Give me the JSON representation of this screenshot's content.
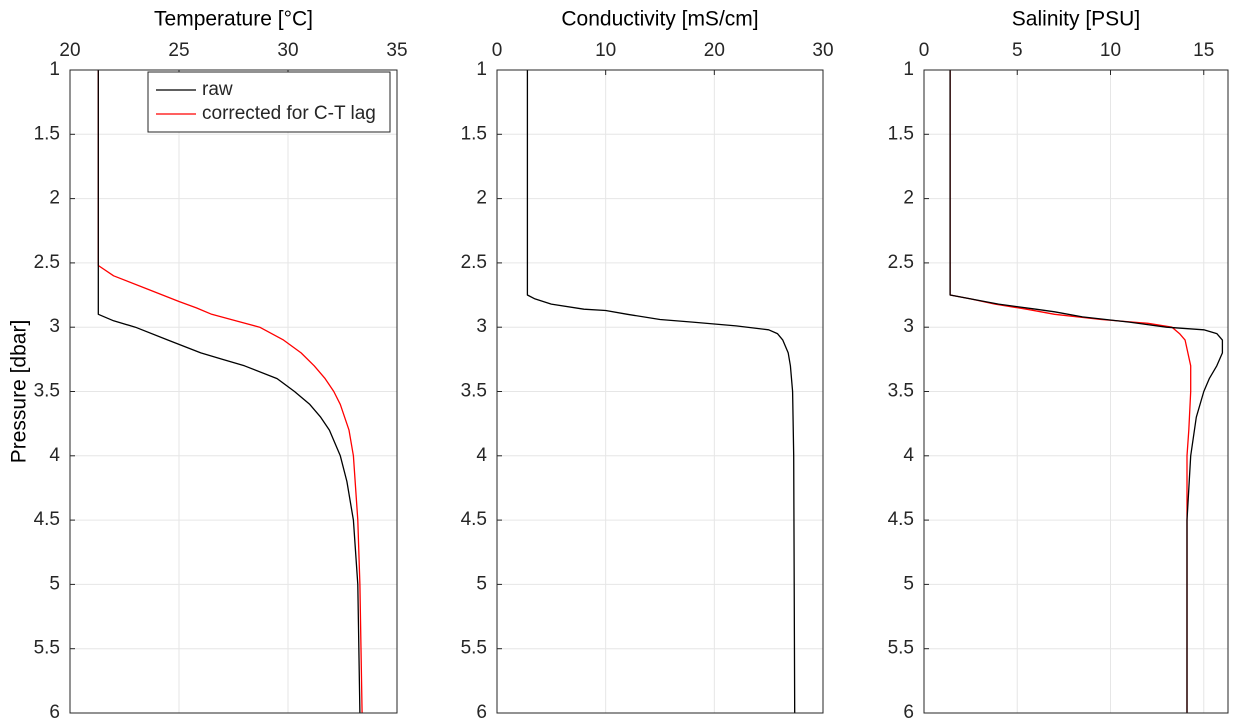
{
  "chart_data": [
    {
      "type": "line",
      "title": "Temperature [°C]",
      "y_label": "Pressure [dbar]",
      "y_reversed": true,
      "grid": true,
      "legend": "upper right",
      "xlim": [
        20,
        35
      ],
      "xticks": [
        20,
        25,
        30,
        35
      ],
      "ylim": [
        1,
        6
      ],
      "yticks": [
        1,
        1.5,
        2,
        2.5,
        3,
        3.5,
        4,
        4.5,
        5,
        5.5,
        6
      ],
      "series": [
        {
          "name": "raw",
          "color": "#000000",
          "x": [
            21.3,
            21.3,
            21.3,
            22,
            23,
            24.5,
            26,
            27,
            28,
            29.5,
            30.3,
            31,
            31.5,
            31.9,
            32.4,
            32.7,
            33,
            33.2,
            33.3
          ],
          "y": [
            1,
            2.5,
            2.9,
            2.95,
            3.0,
            3.1,
            3.2,
            3.25,
            3.3,
            3.4,
            3.5,
            3.6,
            3.7,
            3.8,
            4.0,
            4.2,
            4.5,
            5,
            6
          ]
        },
        {
          "name": "corrected for C-T lag",
          "color": "#ff0000",
          "x": [
            21.3,
            21.3,
            22,
            23.5,
            25,
            25.8,
            26.5,
            27.6,
            28.7,
            29.8,
            30.6,
            31.2,
            31.7,
            32.1,
            32.4,
            32.8,
            33,
            33.2,
            33.3,
            33.4
          ],
          "y": [
            1,
            2.52,
            2.6,
            2.7,
            2.8,
            2.85,
            2.9,
            2.95,
            3.0,
            3.1,
            3.2,
            3.3,
            3.4,
            3.5,
            3.6,
            3.8,
            4.0,
            4.5,
            5,
            6
          ]
        }
      ]
    },
    {
      "type": "line",
      "title": "Conductivity [mS/cm]",
      "y_reversed": true,
      "grid": true,
      "xlim": [
        0,
        30
      ],
      "xticks": [
        0,
        10,
        20,
        30
      ],
      "ylim": [
        1,
        6
      ],
      "yticks": [
        1,
        1.5,
        2,
        2.5,
        3,
        3.5,
        4,
        4.5,
        5,
        5.5,
        6
      ],
      "series": [
        {
          "color": "#000000",
          "x": [
            2.8,
            2.8,
            3.5,
            5,
            8,
            10,
            12,
            15,
            18,
            22,
            24,
            25,
            25.8,
            26.3,
            26.8,
            27,
            27.2,
            27.3,
            27.4
          ],
          "y": [
            1,
            2.75,
            2.78,
            2.82,
            2.86,
            2.87,
            2.9,
            2.94,
            2.96,
            2.99,
            3.01,
            3.02,
            3.05,
            3.1,
            3.2,
            3.3,
            3.5,
            4,
            6
          ]
        }
      ]
    },
    {
      "type": "line",
      "title": "Salinity [PSU]",
      "y_reversed": true,
      "grid": true,
      "xlim": [
        0,
        16.3
      ],
      "xticks": [
        0,
        5,
        10,
        15
      ],
      "ylim": [
        1,
        6
      ],
      "yticks": [
        1,
        1.5,
        2,
        2.5,
        3,
        3.5,
        4,
        4.5,
        5,
        5.5,
        6
      ],
      "series": [
        {
          "color": "#000000",
          "x": [
            1.4,
            1.4,
            2.5,
            4,
            6,
            7,
            8.5,
            11,
            13,
            15,
            15.7,
            16,
            16,
            15.7,
            15.3,
            15,
            14.6,
            14.3,
            14.1,
            14.1,
            14.1
          ],
          "y": [
            1,
            2.75,
            2.78,
            2.82,
            2.86,
            2.88,
            2.92,
            2.96,
            3.0,
            3.02,
            3.05,
            3.1,
            3.2,
            3.3,
            3.4,
            3.5,
            3.7,
            4,
            4.5,
            5,
            6
          ]
        },
        {
          "color": "#ff0000",
          "x": [
            1.4,
            1.4,
            2.5,
            3.8,
            5.5,
            7,
            9.5,
            12,
            13.3,
            13.7,
            14,
            14.3,
            14.3,
            14.2,
            14.1,
            14.1
          ],
          "y": [
            1,
            2.75,
            2.78,
            2.82,
            2.86,
            2.9,
            2.94,
            2.97,
            3.0,
            3.05,
            3.1,
            3.3,
            3.5,
            3.8,
            4,
            6
          ]
        }
      ]
    }
  ]
}
